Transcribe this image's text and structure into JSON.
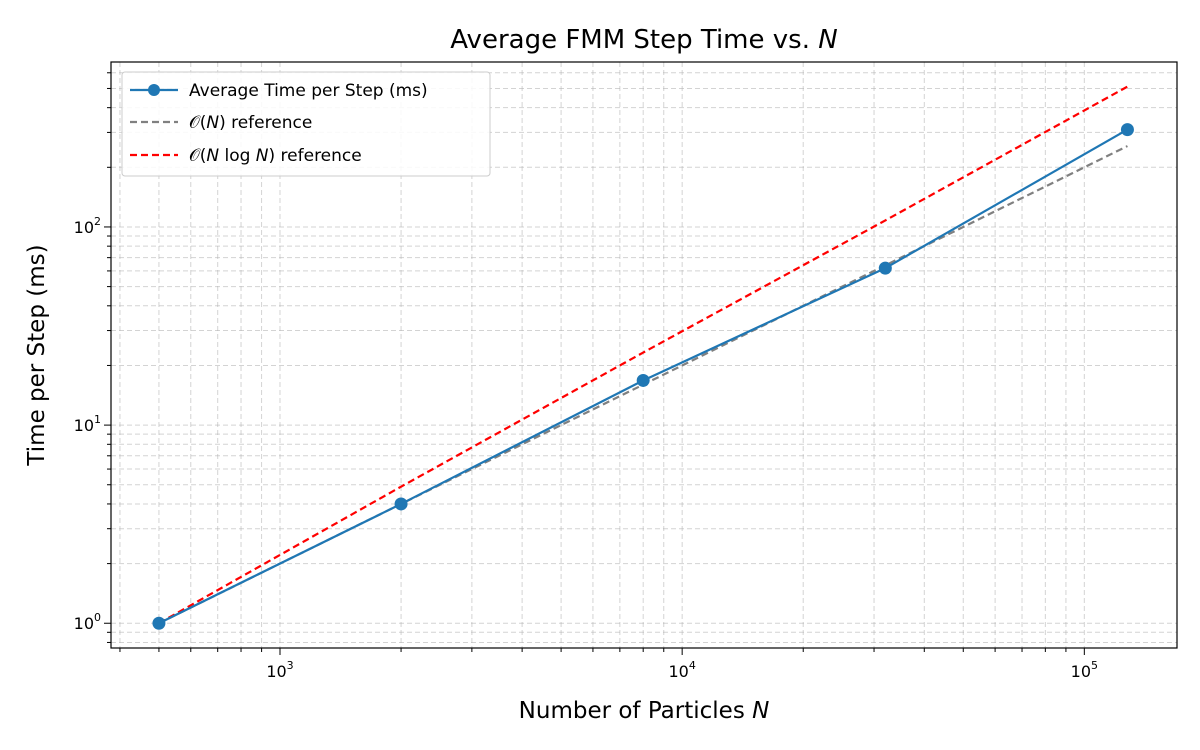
{
  "chart_data": {
    "type": "line",
    "title": "Average FMM Step Time vs. N",
    "title_parts": {
      "text": "Average FMM Step Time vs. ",
      "var": "N"
    },
    "xlabel_parts": {
      "text": "Number of Particles ",
      "var": "N"
    },
    "ylabel": "Time per Step (ms)",
    "xscale": "log",
    "yscale": "log",
    "xlim": [
      380,
      170000
    ],
    "ylim": [
      0.75,
      680
    ],
    "grid": true,
    "grid_which": "both",
    "legend_position": "top-left",
    "x_ticks": [
      {
        "value": 1000,
        "base": "10",
        "exp": "3"
      },
      {
        "value": 10000,
        "base": "10",
        "exp": "4"
      },
      {
        "value": 100000,
        "base": "10",
        "exp": "5"
      }
    ],
    "y_ticks": [
      {
        "value": 1,
        "base": "10",
        "exp": "0"
      },
      {
        "value": 10,
        "base": "10",
        "exp": "1"
      },
      {
        "value": 100,
        "base": "10",
        "exp": "2"
      }
    ],
    "series": [
      {
        "name": "Average Time per Step (ms)",
        "color": "#1f77b4",
        "style": "solid",
        "marker": "circle",
        "x": [
          500,
          2000,
          8000,
          32000,
          128000
        ],
        "y": [
          1.0,
          4.0,
          16.8,
          62.0,
          310.0
        ]
      },
      {
        "name": "𝒪(N) reference",
        "legend_parts": {
          "pre": "𝒪(",
          "var": "N",
          "post": ") reference"
        },
        "color": "#808080",
        "style": "dashed",
        "marker": "none",
        "x": [
          500,
          2000,
          8000,
          32000,
          128000
        ],
        "y": [
          1.0,
          4.0,
          16.0,
          64.0,
          256.0
        ]
      },
      {
        "name": "𝒪(N log N) reference",
        "legend_parts": {
          "pre": "𝒪(",
          "var": "N",
          "mid": " log ",
          "var2": "N",
          "post": ") reference"
        },
        "color": "#ff0000",
        "style": "dashed",
        "marker": "none",
        "x": [
          500,
          2000,
          8000,
          32000,
          128000
        ],
        "y": [
          1.0,
          4.89,
          23.24,
          107.9,
          510.8
        ]
      }
    ]
  }
}
